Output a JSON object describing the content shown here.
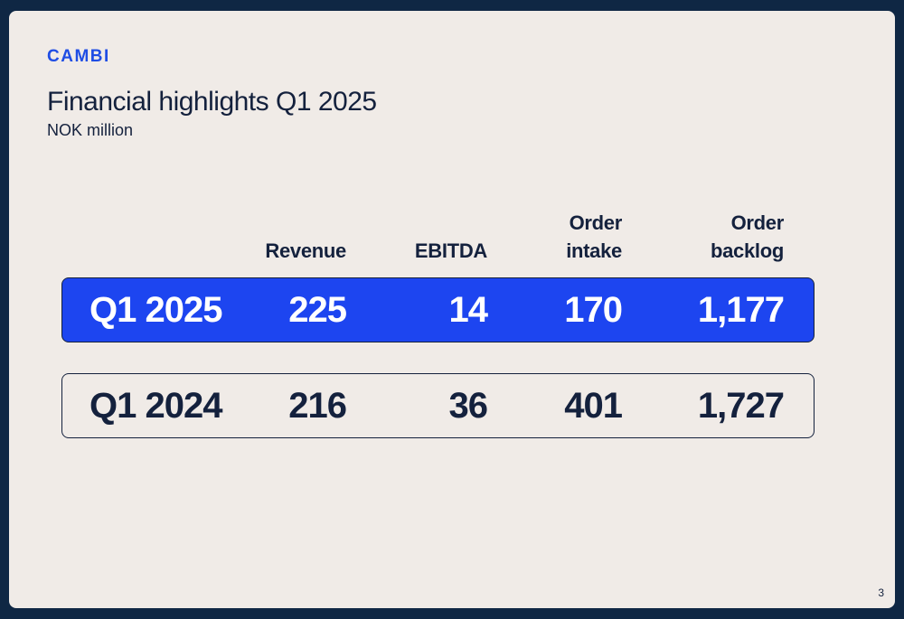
{
  "brand": {
    "logo_text": "CAMBI"
  },
  "slide": {
    "title": "Financial highlights Q1 2025",
    "subtitle": "NOK million",
    "page_number": "3"
  },
  "table": {
    "columns": [
      {
        "line1": "",
        "line2": "Revenue"
      },
      {
        "line1": "",
        "line2": "EBITDA"
      },
      {
        "line1": "Order",
        "line2": "intake"
      },
      {
        "line1": "Order",
        "line2": "backlog"
      }
    ],
    "rows": [
      {
        "period": "Q1 2025",
        "values": [
          "225",
          "14",
          "170",
          "1,177"
        ],
        "highlight": true
      },
      {
        "period": "Q1 2024",
        "values": [
          "216",
          "36",
          "401",
          "1,727"
        ],
        "highlight": false
      }
    ]
  },
  "colors": {
    "frame": "#0f2744",
    "background": "#f0ebe7",
    "accent": "#1d45f0",
    "text": "#14213d"
  }
}
